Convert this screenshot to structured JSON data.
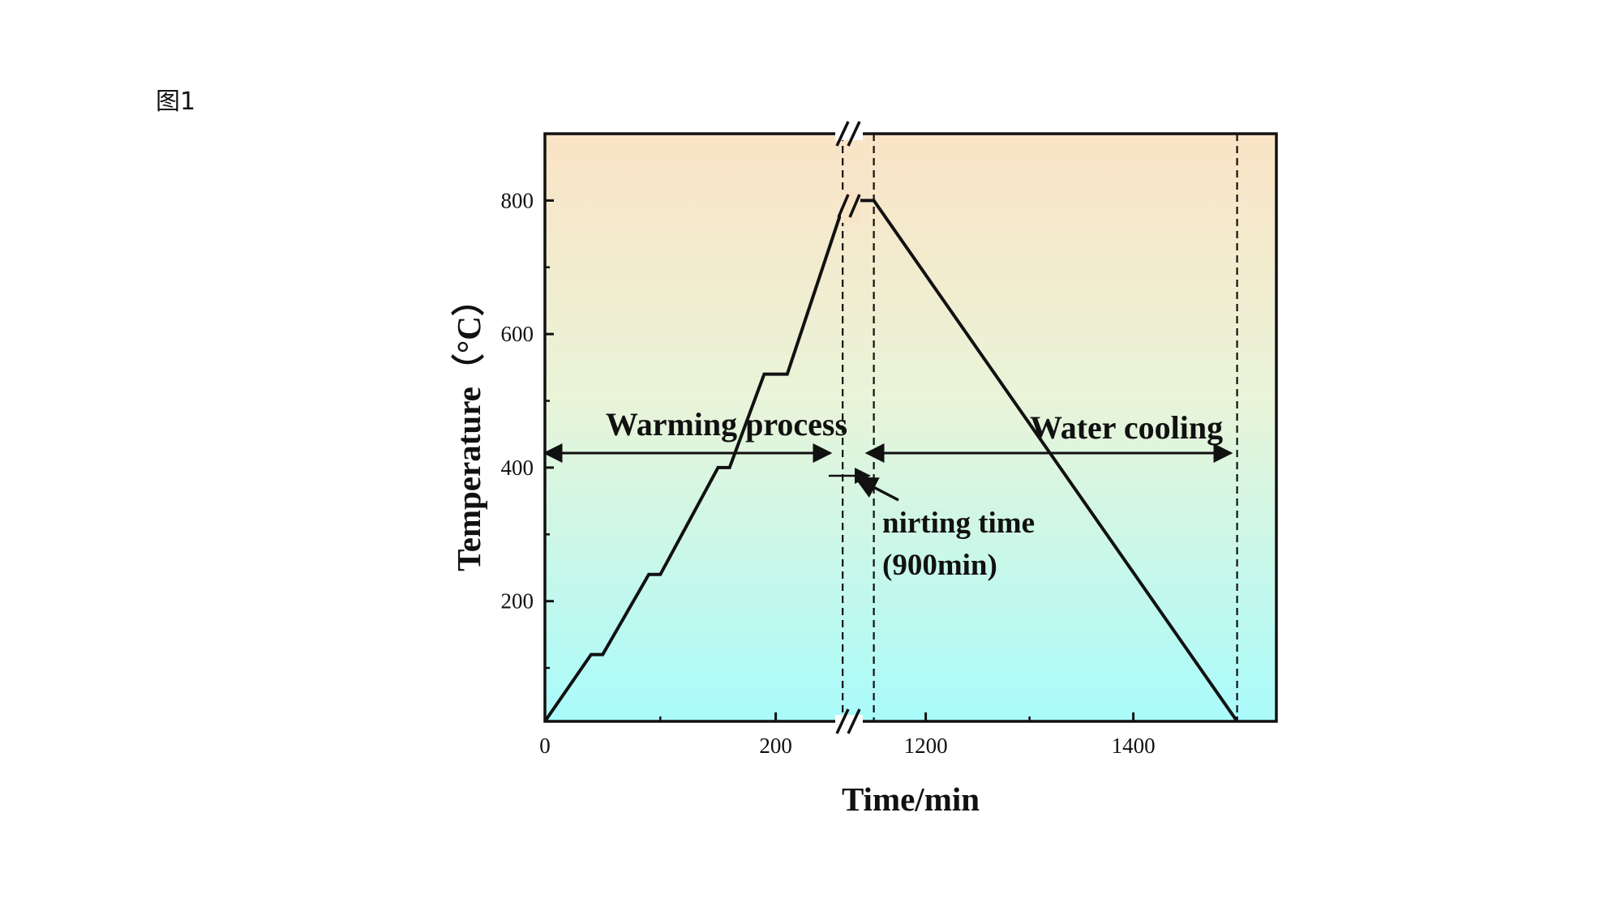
{
  "figure_label": "图1",
  "chart_data": {
    "type": "line",
    "title": "",
    "xlabel": "Time/min",
    "ylabel": "Temperature（°C）",
    "x_segments": [
      {
        "range": [
          0,
          260
        ],
        "ticks": [
          0,
          200
        ]
      },
      {
        "range": [
          1130,
          1530
        ],
        "ticks": [
          1200,
          1400
        ]
      }
    ],
    "ylim": [
      20,
      900
    ],
    "yticks": [
      200,
      400,
      600,
      800
    ],
    "series": [
      {
        "name": "temperature profile",
        "points": [
          [
            0,
            20
          ],
          [
            40,
            120
          ],
          [
            50,
            120
          ],
          [
            90,
            240
          ],
          [
            100,
            240
          ],
          [
            150,
            400
          ],
          [
            160,
            400
          ],
          [
            190,
            540
          ],
          [
            210,
            540
          ],
          [
            260,
            800
          ],
          [
            275,
            800
          ],
          [
            1150,
            800
          ],
          [
            1500,
            20
          ]
        ]
      }
    ],
    "dashed_lines_x": [
      258,
      1150,
      1500
    ],
    "annotations": {
      "warming": "Warming process",
      "water": "Water cooling",
      "nirting_1": "nirting time",
      "nirting_2": "(900min)"
    },
    "colors": {
      "top": "#fbe3c5",
      "bottom": "#a9fbfb",
      "line": "#111111"
    }
  }
}
